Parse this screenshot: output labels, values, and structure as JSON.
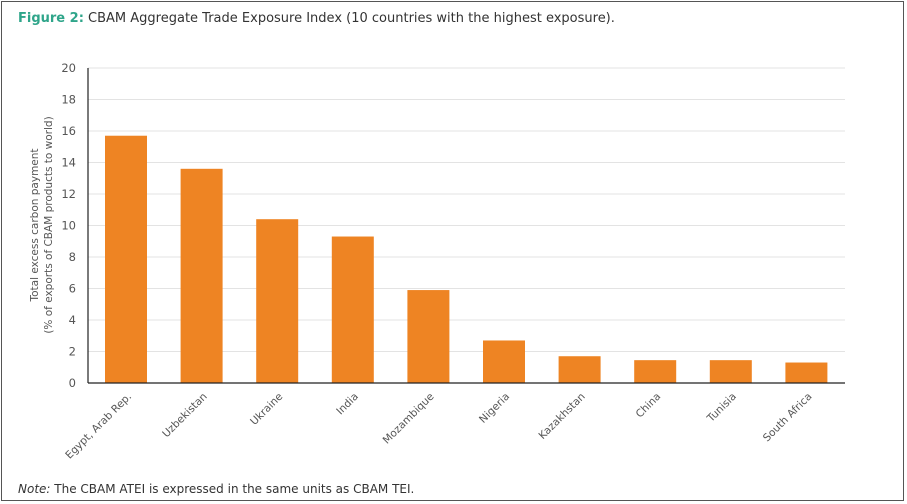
{
  "figure_label": "Figure 2:",
  "figure_title": "CBAM Aggregate Trade Exposure Index (10 countries with the highest exposure).",
  "note_label": "Note:",
  "note_text": "The CBAM ATEI is expressed in the same units as CBAM TEI.",
  "chart_data": {
    "type": "bar",
    "title": "CBAM Aggregate Trade Exposure Index (10 countries with the highest exposure).",
    "xlabel": "",
    "ylabel": [
      "Total excess carbon payment",
      "(% of exports of CBAM products to world)"
    ],
    "ylim": [
      0,
      20
    ],
    "yticks": [
      0,
      2,
      4,
      6,
      8,
      10,
      12,
      14,
      16,
      18,
      20
    ],
    "grid": true,
    "color": "#ee8423",
    "categories": [
      "Egypt, Arab Rep.",
      "Uzbekistan",
      "Ukraine",
      "India",
      "Mozambique",
      "Nigeria",
      "Kazakhstan",
      "China",
      "Tunisia",
      "South Africa"
    ],
    "values": [
      15.7,
      13.6,
      10.4,
      9.3,
      5.9,
      2.7,
      1.7,
      1.45,
      1.45,
      1.3
    ]
  }
}
